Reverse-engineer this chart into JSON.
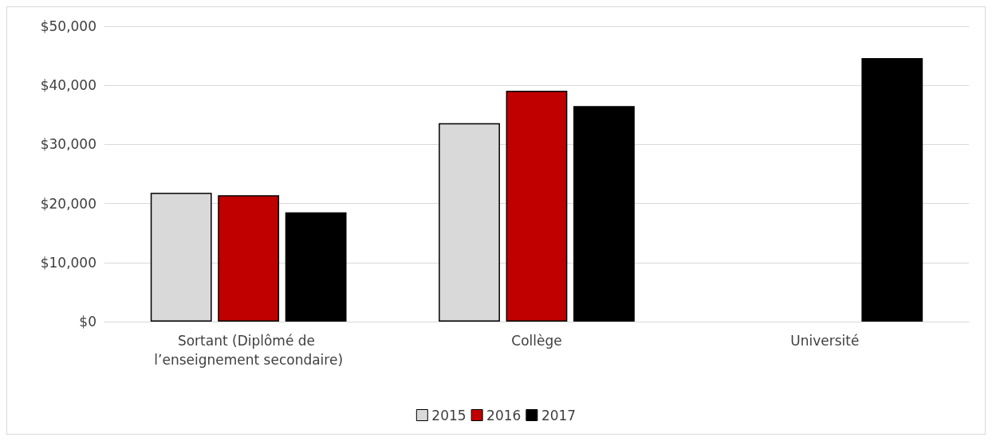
{
  "chart_data": {
    "type": "bar",
    "categories": [
      "Sortant (Diplômé de l’enseignement secondaire)",
      "Collège",
      "Université"
    ],
    "series": [
      {
        "name": "2015",
        "color": "#d9d9d9",
        "values": [
          21800,
          33600,
          null
        ]
      },
      {
        "name": "2016",
        "color": "#c00000",
        "values": [
          21400,
          39100,
          null
        ]
      },
      {
        "name": "2017",
        "color": "#000000",
        "values": [
          18500,
          36500,
          44600
        ]
      }
    ],
    "ylim": [
      0,
      50000
    ],
    "yticks": [
      {
        "value": 0,
        "label": "$0"
      },
      {
        "value": 10000,
        "label": "$10,000"
      },
      {
        "value": 20000,
        "label": "$20,000"
      },
      {
        "value": 30000,
        "label": "$30,000"
      },
      {
        "value": 40000,
        "label": "$40,000"
      },
      {
        "value": 50000,
        "label": "$50,000"
      }
    ],
    "grid": "y",
    "legend": "bottom"
  }
}
